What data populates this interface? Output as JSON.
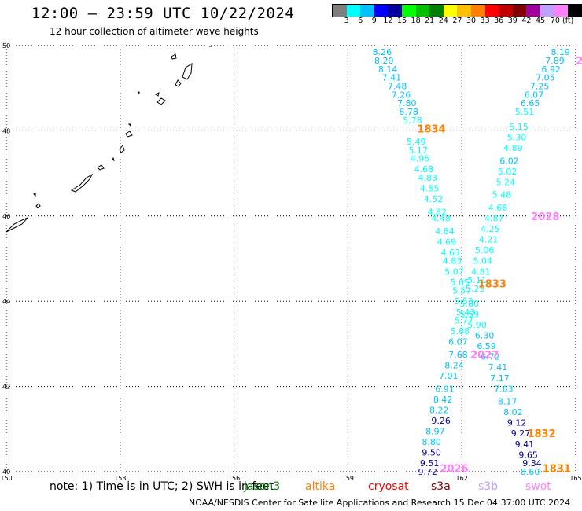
{
  "header": {
    "title": "12:00 – 23:59 UTC 10/22/2024",
    "subtitle": "12 hour collection of altimeter wave heights"
  },
  "colorbar": {
    "colors": [
      "#7f7f7f",
      "#00ffff",
      "#00c0ff",
      "#0000ff",
      "#0000a0",
      "#00ff00",
      "#00c000",
      "#008000",
      "#ffff00",
      "#ffc000",
      "#ff8000",
      "#ff0000",
      "#c00000",
      "#800000",
      "#a000a0",
      "#c0a0ff",
      "#ff80ff",
      "#000000"
    ],
    "labels": [
      "3",
      "6",
      "9",
      "12",
      "15",
      "18",
      "21",
      "24",
      "27",
      "30",
      "33",
      "36",
      "39",
      "42",
      "45",
      "70 (ft)"
    ]
  },
  "footer": {
    "note": "note:  1) Time is in UTC; 2) SWH is in feet",
    "credit": "NOAA/NESDIS Center for Satellite Applications and Research     15 Dec 04:37:00 UTC 2024",
    "legend": [
      {
        "label": "jason3",
        "color": "#008000"
      },
      {
        "label": "altika",
        "color": "#ff8000"
      },
      {
        "label": "cryosat",
        "color": "#ff0000"
      },
      {
        "label": "s3a",
        "color": "#800000"
      },
      {
        "label": "s3b",
        "color": "#c0a0ff"
      },
      {
        "label": "swot",
        "color": "#ff80ff"
      }
    ]
  },
  "chart_data": {
    "type": "scatter",
    "title": "12:00 – 23:59 UTC 10/22/2024",
    "subtitle": "12 hour collection of altimeter wave heights",
    "xlabel": "",
    "ylabel": "",
    "xlim": [
      150,
      165
    ],
    "ylim": [
      40,
      50
    ],
    "xticks": [
      "150",
      "153",
      "156",
      "159",
      "162",
      "165"
    ],
    "yticks": [
      "40",
      "42",
      "44",
      "46",
      "48",
      "50"
    ],
    "grid": true,
    "units": "ft",
    "time_labels": [
      {
        "text": "1834",
        "lon": 161.2,
        "lat": 48.05,
        "color": "#ff8000"
      },
      {
        "text": "2028",
        "lon": 164.2,
        "lat": 46.0,
        "color": "#ff80ff"
      },
      {
        "text": "1833",
        "lon": 162.8,
        "lat": 44.42,
        "color": "#ff8000"
      },
      {
        "text": "2027",
        "lon": 162.6,
        "lat": 42.75,
        "color": "#ff80ff"
      },
      {
        "text": "1832",
        "lon": 164.1,
        "lat": 40.9,
        "color": "#ff8000"
      },
      {
        "text": "2026",
        "lon": 161.8,
        "lat": 40.08,
        "color": "#ff80ff"
      },
      {
        "text": "1831",
        "lon": 164.5,
        "lat": 40.08,
        "color": "#ff8000"
      },
      {
        "text": "2",
        "lon": 165.1,
        "lat": 49.65,
        "color": "#ff80ff"
      }
    ],
    "series": [
      {
        "name": "",
        "points": [
          {
            "lon": 159.9,
            "lat": 49.85,
            "v": "8.26",
            "c": "#00c0ff"
          },
          {
            "lon": 159.95,
            "lat": 49.65,
            "v": "8.20",
            "c": "#00c0ff"
          },
          {
            "lon": 160.05,
            "lat": 49.45,
            "v": "8.14",
            "c": "#00c0ff"
          },
          {
            "lon": 160.15,
            "lat": 49.25,
            "v": "7.41",
            "c": "#00c0ff"
          },
          {
            "lon": 160.3,
            "lat": 49.05,
            "v": "7.48",
            "c": "#00c0ff"
          },
          {
            "lon": 160.4,
            "lat": 48.85,
            "v": "7.26",
            "c": "#00c0ff"
          },
          {
            "lon": 160.55,
            "lat": 48.65,
            "v": "7.80",
            "c": "#00c0ff"
          },
          {
            "lon": 160.6,
            "lat": 48.45,
            "v": "6.78",
            "c": "#00c0ff"
          },
          {
            "lon": 160.7,
            "lat": 48.25,
            "v": "5.78",
            "c": "#00ffff"
          },
          {
            "lon": 160.8,
            "lat": 47.75,
            "v": "5.49",
            "c": "#00ffff"
          },
          {
            "lon": 160.85,
            "lat": 47.55,
            "v": "5.17",
            "c": "#00ffff"
          },
          {
            "lon": 160.9,
            "lat": 47.35,
            "v": "4.95",
            "c": "#00ffff"
          },
          {
            "lon": 161.0,
            "lat": 47.1,
            "v": "4.68",
            "c": "#00ffff"
          },
          {
            "lon": 161.1,
            "lat": 46.9,
            "v": "4.83",
            "c": "#00ffff"
          },
          {
            "lon": 161.15,
            "lat": 46.65,
            "v": "4.55",
            "c": "#00ffff"
          },
          {
            "lon": 161.25,
            "lat": 46.4,
            "v": "4.52",
            "c": "#00ffff"
          },
          {
            "lon": 161.35,
            "lat": 46.1,
            "v": "4.82",
            "c": "#00ffff"
          },
          {
            "lon": 161.45,
            "lat": 45.95,
            "v": "4.48",
            "c": "#00ffff"
          },
          {
            "lon": 161.55,
            "lat": 45.65,
            "v": "4.84",
            "c": "#00ffff"
          },
          {
            "lon": 161.6,
            "lat": 45.4,
            "v": "4.69",
            "c": "#00ffff"
          },
          {
            "lon": 161.7,
            "lat": 45.15,
            "v": "4.63",
            "c": "#00ffff"
          },
          {
            "lon": 161.75,
            "lat": 44.95,
            "v": "4.83",
            "c": "#00ffff"
          },
          {
            "lon": 161.8,
            "lat": 44.7,
            "v": "5.07",
            "c": "#00ffff"
          },
          {
            "lon": 161.95,
            "lat": 44.45,
            "v": "5.05",
            "c": "#00ffff"
          },
          {
            "lon": 162.0,
            "lat": 44.25,
            "v": "5.57",
            "c": "#00ffff"
          },
          {
            "lon": 162.05,
            "lat": 44.0,
            "v": "5.53",
            "c": "#00ffff"
          },
          {
            "lon": 162.1,
            "lat": 43.75,
            "v": "5.43",
            "c": "#00ffff"
          },
          {
            "lon": 162.05,
            "lat": 43.55,
            "v": "5.77",
            "c": "#00ffff"
          },
          {
            "lon": 161.95,
            "lat": 43.3,
            "v": "5.88",
            "c": "#00ffff"
          },
          {
            "lon": 161.9,
            "lat": 43.05,
            "v": "6.07",
            "c": "#00c0ff"
          },
          {
            "lon": 161.9,
            "lat": 42.75,
            "v": "7.68",
            "c": "#00c0ff"
          },
          {
            "lon": 161.8,
            "lat": 42.5,
            "v": "8.24",
            "c": "#00c0ff"
          },
          {
            "lon": 161.65,
            "lat": 42.25,
            "v": "7.01",
            "c": "#00c0ff"
          },
          {
            "lon": 161.55,
            "lat": 41.95,
            "v": "6.91",
            "c": "#00c0ff"
          },
          {
            "lon": 161.5,
            "lat": 41.7,
            "v": "8.42",
            "c": "#00c0ff"
          },
          {
            "lon": 161.4,
            "lat": 41.45,
            "v": "8.22",
            "c": "#00c0ff"
          },
          {
            "lon": 161.45,
            "lat": 41.2,
            "v": "9.26",
            "c": "#0000a0"
          },
          {
            "lon": 161.3,
            "lat": 40.95,
            "v": "8.97",
            "c": "#00c0ff"
          },
          {
            "lon": 161.2,
            "lat": 40.7,
            "v": "8.80",
            "c": "#00c0ff"
          },
          {
            "lon": 161.2,
            "lat": 40.45,
            "v": "9.50",
            "c": "#0000a0"
          },
          {
            "lon": 161.15,
            "lat": 40.2,
            "v": "9.51",
            "c": "#0000a0"
          },
          {
            "lon": 161.1,
            "lat": 40.0,
            "v": "9.72",
            "c": "#0000a0"
          }
        ]
      },
      {
        "name": "",
        "points": [
          {
            "lon": 164.6,
            "lat": 49.85,
            "v": "8.19",
            "c": "#00c0ff"
          },
          {
            "lon": 164.45,
            "lat": 49.65,
            "v": "7.89",
            "c": "#00c0ff"
          },
          {
            "lon": 164.35,
            "lat": 49.45,
            "v": "6.92",
            "c": "#00c0ff"
          },
          {
            "lon": 164.2,
            "lat": 49.25,
            "v": "7.05",
            "c": "#00c0ff"
          },
          {
            "lon": 164.05,
            "lat": 49.05,
            "v": "7.25",
            "c": "#00c0ff"
          },
          {
            "lon": 163.9,
            "lat": 48.85,
            "v": "6.07",
            "c": "#00c0ff"
          },
          {
            "lon": 163.8,
            "lat": 48.65,
            "v": "6.65",
            "c": "#00c0ff"
          },
          {
            "lon": 163.65,
            "lat": 48.45,
            "v": "5.51",
            "c": "#00ffff"
          },
          {
            "lon": 163.5,
            "lat": 48.1,
            "v": "5.15",
            "c": "#00ffff"
          },
          {
            "lon": 163.45,
            "lat": 47.85,
            "v": "5.30",
            "c": "#00ffff"
          },
          {
            "lon": 163.35,
            "lat": 47.6,
            "v": "4.89",
            "c": "#00ffff"
          },
          {
            "lon": 163.25,
            "lat": 47.3,
            "v": "6.02",
            "c": "#00c0ff"
          },
          {
            "lon": 163.2,
            "lat": 47.05,
            "v": "5.02",
            "c": "#00ffff"
          },
          {
            "lon": 163.15,
            "lat": 46.8,
            "v": "5.24",
            "c": "#00ffff"
          },
          {
            "lon": 163.05,
            "lat": 46.5,
            "v": "5.48",
            "c": "#00ffff"
          },
          {
            "lon": 162.95,
            "lat": 46.2,
            "v": "4.66",
            "c": "#00ffff"
          },
          {
            "lon": 162.85,
            "lat": 45.95,
            "v": "4.87",
            "c": "#00ffff"
          },
          {
            "lon": 162.75,
            "lat": 45.7,
            "v": "4.25",
            "c": "#00ffff"
          },
          {
            "lon": 162.7,
            "lat": 45.45,
            "v": "4.21",
            "c": "#00ffff"
          },
          {
            "lon": 162.6,
            "lat": 45.2,
            "v": "5.06",
            "c": "#00ffff"
          },
          {
            "lon": 162.55,
            "lat": 44.95,
            "v": "5.04",
            "c": "#00ffff"
          },
          {
            "lon": 162.5,
            "lat": 44.7,
            "v": "4.81",
            "c": "#00ffff"
          },
          {
            "lon": 162.4,
            "lat": 44.5,
            "v": "5.11",
            "c": "#00ffff"
          },
          {
            "lon": 162.35,
            "lat": 44.3,
            "v": "5.25",
            "c": "#00ffff"
          },
          {
            "lon": 162.2,
            "lat": 43.95,
            "v": "5.80",
            "c": "#00ffff"
          },
          {
            "lon": 162.2,
            "lat": 43.7,
            "v": "5.59",
            "c": "#00ffff"
          },
          {
            "lon": 162.4,
            "lat": 43.45,
            "v": "5.90",
            "c": "#00ffff"
          },
          {
            "lon": 162.6,
            "lat": 43.2,
            "v": "6.30",
            "c": "#00c0ff"
          },
          {
            "lon": 162.65,
            "lat": 42.95,
            "v": "6.59",
            "c": "#00c0ff"
          },
          {
            "lon": 162.75,
            "lat": 42.7,
            "v": "6.72",
            "c": "#00c0ff"
          },
          {
            "lon": 162.95,
            "lat": 42.45,
            "v": "7.41",
            "c": "#00c0ff"
          },
          {
            "lon": 163.0,
            "lat": 42.2,
            "v": "7.17",
            "c": "#00c0ff"
          },
          {
            "lon": 163.1,
            "lat": 41.95,
            "v": "7.63",
            "c": "#00c0ff"
          },
          {
            "lon": 163.2,
            "lat": 41.65,
            "v": "8.17",
            "c": "#00c0ff"
          },
          {
            "lon": 163.35,
            "lat": 41.4,
            "v": "8.02",
            "c": "#00c0ff"
          },
          {
            "lon": 163.45,
            "lat": 41.15,
            "v": "9.12",
            "c": "#0000a0"
          },
          {
            "lon": 163.55,
            "lat": 40.9,
            "v": "9.27",
            "c": "#0000a0"
          },
          {
            "lon": 163.65,
            "lat": 40.65,
            "v": "9.41",
            "c": "#0000a0"
          },
          {
            "lon": 163.75,
            "lat": 40.4,
            "v": "9.65",
            "c": "#0000a0"
          },
          {
            "lon": 163.85,
            "lat": 40.2,
            "v": "9.34",
            "c": "#0000a0"
          },
          {
            "lon": 163.8,
            "lat": 40.0,
            "v": "8.60",
            "c": "#00c0ff"
          }
        ]
      }
    ]
  }
}
